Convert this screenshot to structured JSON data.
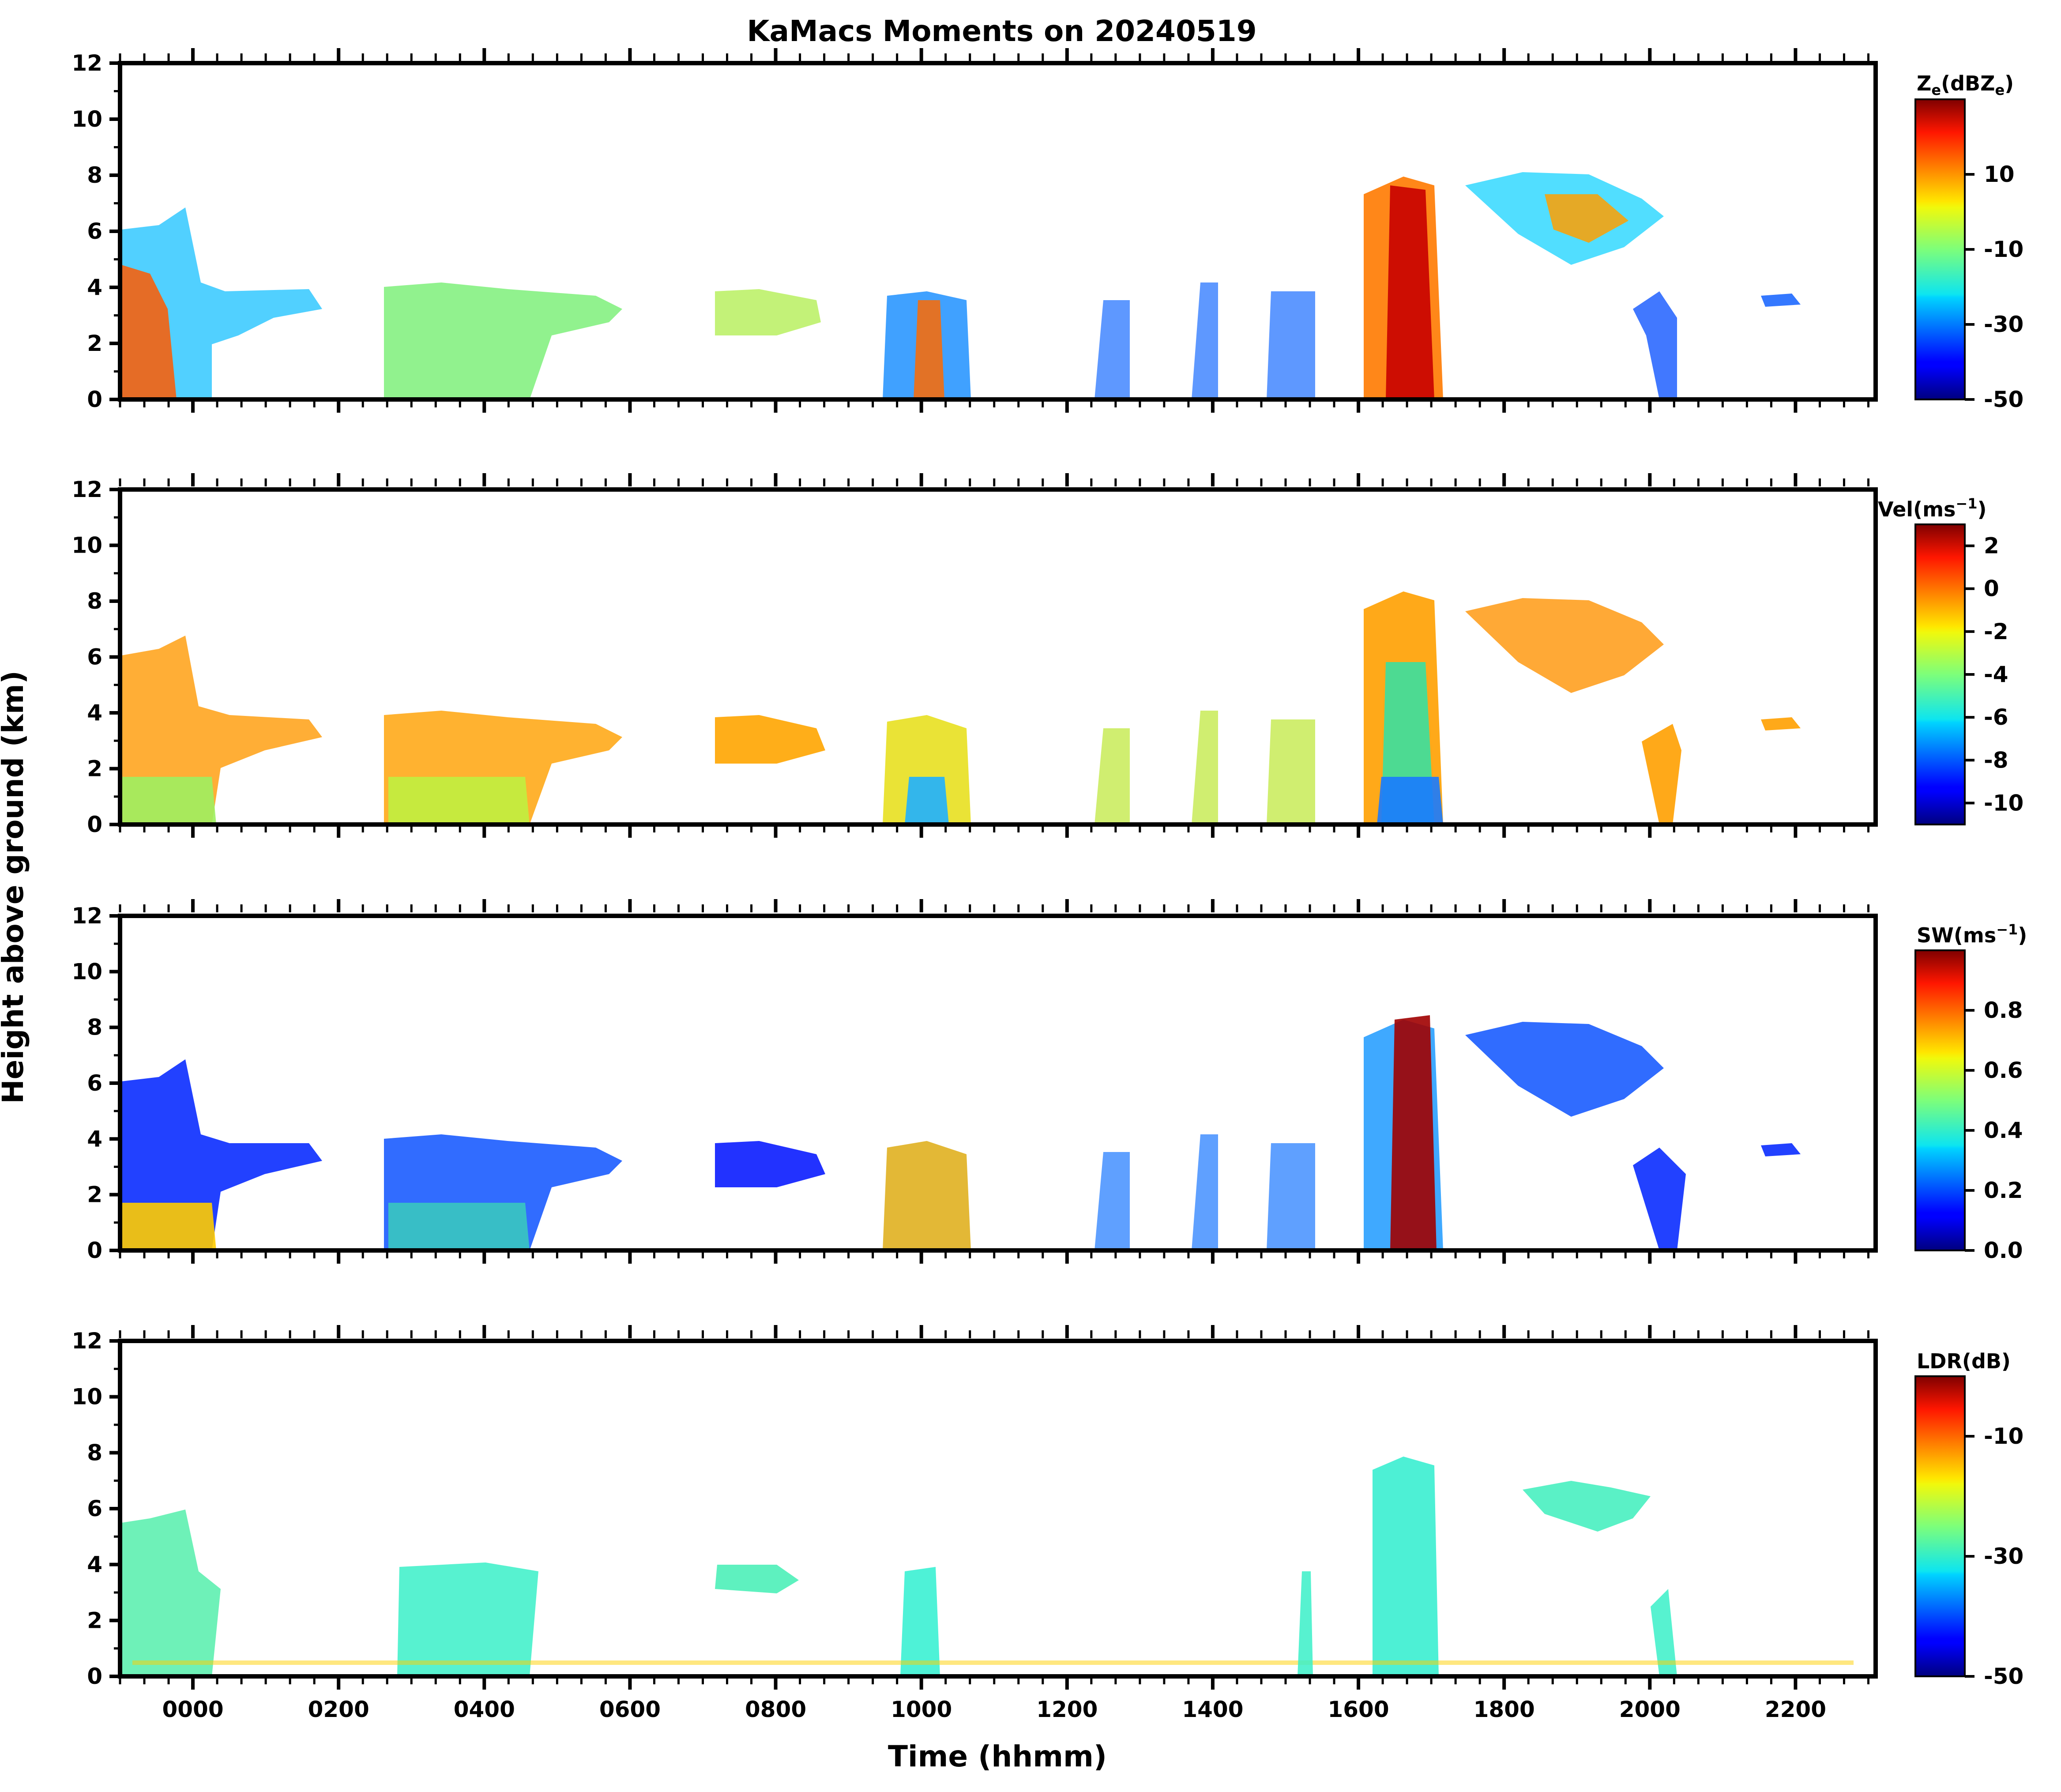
{
  "title": "KaMacs Moments on 20240519",
  "chart_data": {
    "type": "heatmap",
    "title": "KaMacs Moments on 20240519",
    "xlabel": "Time (hhmm)",
    "ylabel": "Height above ground (km)",
    "x_tick_labels": [
      "0000",
      "0200",
      "0400",
      "0600",
      "0800",
      "1000",
      "1200",
      "1400",
      "1600",
      "1800",
      "2000",
      "2200"
    ],
    "x_tick_hours": [
      0,
      2,
      4,
      6,
      8,
      10,
      12,
      14,
      16,
      18,
      20,
      22
    ],
    "xlim_hours": [
      -1,
      23.1
    ],
    "y_ticks": [
      0,
      2,
      4,
      6,
      8,
      10,
      12
    ],
    "ylim": [
      0,
      12
    ],
    "panels": [
      {
        "id": "ze",
        "colorbar_label_main": "Z",
        "colorbar_label_sub": "e",
        "colorbar_label_rest": "(dBZ",
        "colorbar_label_sub2": "e",
        "colorbar_label_end": ")",
        "colorbar_range": [
          -50,
          30
        ],
        "colorbar_ticks": [
          -50,
          -30,
          -10,
          10
        ],
        "colorbar_tick_labels": [
          "-50",
          "-30",
          "-10",
          "10"
        ]
      },
      {
        "id": "vel",
        "colorbar_label": "Vel(ms",
        "colorbar_label_sup": "−1",
        "colorbar_label_end": ")",
        "colorbar_range": [
          -11,
          3
        ],
        "colorbar_ticks": [
          -10,
          -8,
          -6,
          -4,
          -2,
          0,
          2
        ],
        "colorbar_tick_labels": [
          "-10",
          "-8",
          "-6",
          "-4",
          "-2",
          "0",
          "2"
        ]
      },
      {
        "id": "sw",
        "colorbar_label": "SW(ms",
        "colorbar_label_sup": "−1",
        "colorbar_label_end": ")",
        "colorbar_range": [
          0,
          1
        ],
        "colorbar_ticks": [
          0.0,
          0.2,
          0.4,
          0.6,
          0.8
        ],
        "colorbar_tick_labels": [
          "0.0",
          "0.2",
          "0.4",
          "0.6",
          "0.8"
        ]
      },
      {
        "id": "ldr",
        "colorbar_label": "LDR(dB)",
        "colorbar_range": [
          -50,
          0
        ],
        "colorbar_ticks": [
          -50,
          -30,
          -10
        ],
        "colorbar_tick_labels": [
          "-50",
          "-30",
          "-10"
        ]
      }
    ]
  }
}
